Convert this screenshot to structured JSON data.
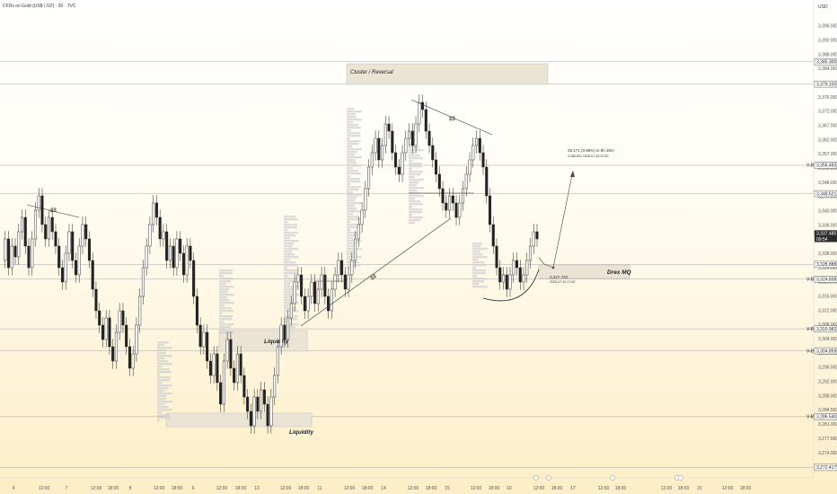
{
  "header": {
    "symbol": "CFDs on Gold (US$ / OZ) · 30 · TVC",
    "currency": "USD"
  },
  "colors": {
    "up": "#089981",
    "down": "#f23645",
    "candle": "#222222",
    "box": "#e8e2ce",
    "profile": "#cfcfcf"
  },
  "chart_data": {
    "type": "candlestick",
    "title": "CFDs on Gold (US$ / OZ) · 30 · TVC",
    "ylabel": "USD",
    "ylim": [
      3270,
      3400
    ],
    "y_ticks": [
      "3,396.000",
      "3,392.000",
      "3,388.000",
      "3,384.000",
      "3,380.000",
      "3,376.000",
      "3,372.000",
      "3,367.000",
      "3,362.000",
      "3,357.000",
      "3,352.000",
      "3,348.000",
      "3,344.000",
      "3,340.000",
      "3,336.000",
      "3,332.000",
      "3,328.000",
      "3,324.000",
      "3,320.000",
      "3,316.000",
      "3,312.000",
      "3,308.000",
      "3,304.000",
      "3,300.000",
      "3,296.000",
      "3,292.000",
      "3,288.000",
      "3,284.500",
      "3,281.000",
      "3,277.500",
      "3,274.000",
      "3,270.800"
    ],
    "x_ticks": [
      "4",
      "12:00",
      "7",
      "12:00",
      "18:00",
      "8",
      "12:00",
      "18:00",
      "9",
      "12:00",
      "18:00",
      "10",
      "12:00",
      "18:00",
      "11",
      "12:00",
      "18:00",
      "14",
      "12:00",
      "18:00",
      "15",
      "12:00",
      "18:00",
      "16",
      "12:00",
      "18:00",
      "17",
      "12:00",
      "18:00",
      "12:00",
      "18:00",
      "21",
      "12:00",
      "18:00"
    ],
    "price_tags": [
      {
        "label": "3,385.300",
        "value": 3385.3,
        "prefix": ""
      },
      {
        "label": "3,379.100",
        "value": 3379.1,
        "prefix": ""
      },
      {
        "label": "3,356.493",
        "value": 3356.5,
        "prefix": "V-B"
      },
      {
        "label": "3,348.621",
        "value": 3348.6,
        "prefix": ""
      },
      {
        "label": "3,337.480",
        "value": 3337.5,
        "prefix": "",
        "sub": "09:54",
        "dark": true
      },
      {
        "label": "3,328.888",
        "value": 3328.9,
        "prefix": ""
      },
      {
        "label": "3,324.838",
        "value": 3324.8,
        "prefix": "V-B"
      },
      {
        "label": "3,310.982",
        "value": 3310.98,
        "prefix": "V-B"
      },
      {
        "label": "3,304.859",
        "value": 3304.86,
        "prefix": "V-B"
      },
      {
        "label": "3,286.540",
        "value": 3286.54,
        "prefix": "V-B"
      },
      {
        "label": "3,272.417",
        "value": 3272.4,
        "prefix": ""
      }
    ],
    "annotations": {
      "cluster": "Cluster / Reversal",
      "liquidity_1": "Liquidity",
      "liquidity_2": "Liquidity",
      "drex": "Drex MQ",
      "ss_1": "$$",
      "ss_2": "$$",
      "ss_3": "$$",
      "projection_1": "29.171 (0.88%) in 6h 30m",
      "projection_2": "3,356.891   2025-07-16  23:30",
      "origin_1": "3,327.720",
      "origin_2": "2025-07-16  17:00"
    },
    "price_path": [
      3330,
      3336,
      3328,
      3334,
      3331,
      3338,
      3342,
      3334,
      3328,
      3336,
      3344,
      3348,
      3340,
      3336,
      3342,
      3338,
      3334,
      3328,
      3324,
      3332,
      3338,
      3330,
      3326,
      3334,
      3340,
      3336,
      3330,
      3322,
      3316,
      3312,
      3308,
      3314,
      3306,
      3302,
      3310,
      3316,
      3312,
      3306,
      3300,
      3304,
      3312,
      3320,
      3328,
      3334,
      3340,
      3346,
      3342,
      3336,
      3338,
      3330,
      3334,
      3328,
      3336,
      3332,
      3326,
      3334,
      3330,
      3320,
      3312,
      3306,
      3310,
      3302,
      3298,
      3304,
      3296,
      3290,
      3302,
      3308,
      3300,
      3296,
      3304,
      3298,
      3292,
      3288,
      3284,
      3292,
      3288,
      3294,
      3290,
      3284,
      3292,
      3298,
      3306,
      3312,
      3308,
      3314,
      3318,
      3324,
      3326,
      3320,
      3316,
      3320,
      3324,
      3318,
      3322,
      3326,
      3320,
      3316,
      3322,
      3326,
      3330,
      3326,
      3322,
      3326,
      3330,
      3336,
      3340,
      3344,
      3350,
      3356,
      3360,
      3364,
      3358,
      3362,
      3368,
      3366,
      3360,
      3356,
      3354,
      3360,
      3364,
      3366,
      3362,
      3368,
      3374,
      3372,
      3366,
      3362,
      3358,
      3354,
      3350,
      3346,
      3344,
      3348,
      3346,
      3342,
      3346,
      3350,
      3354,
      3358,
      3362,
      3364,
      3360,
      3356,
      3348,
      3340,
      3334,
      3328,
      3324,
      3326,
      3322,
      3326,
      3330,
      3328,
      3324,
      3326,
      3330,
      3334,
      3338,
      3336
    ]
  }
}
